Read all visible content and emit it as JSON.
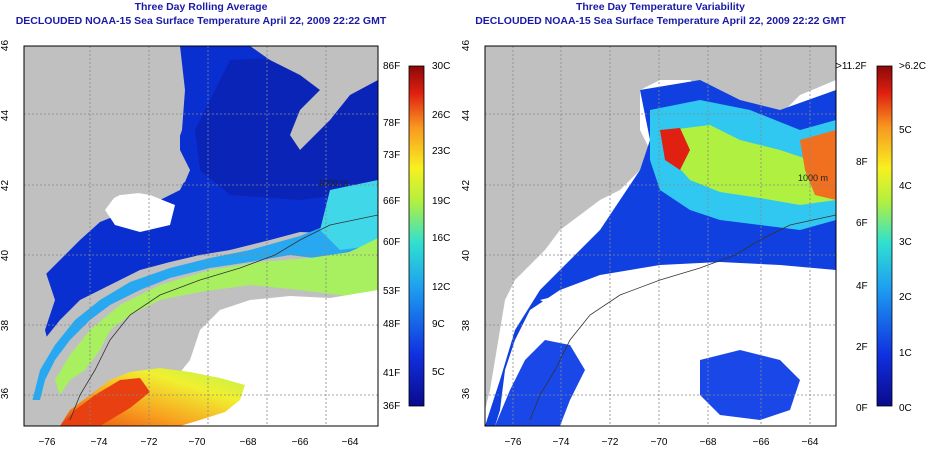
{
  "left_panel": {
    "title_line1": "Three Day Rolling Average",
    "title_line2": "DECLOUDED NOAA-15 Sea Surface Temperature April 22, 2009 22:22 GMT",
    "y_ticks": [
      "46",
      "44",
      "42",
      "40",
      "38",
      "36"
    ],
    "x_ticks": [
      "−76",
      "−74",
      "−72",
      "−70",
      "−68",
      "−66",
      "−64"
    ],
    "contour_label": "1000 m",
    "colorbar_left_labels": [
      "86F",
      "78F",
      "73F",
      "66F",
      "60F",
      "53F",
      "48F",
      "41F",
      "36F"
    ],
    "colorbar_right_labels": [
      "30C",
      "26C",
      "23C",
      "19C",
      "16C",
      "12C",
      "9C",
      "5C"
    ]
  },
  "right_panel": {
    "title_line1": "Three Day Temperature Variability",
    "title_line2": "DECLOUDED NOAA-15 Sea Surface Temperature April 22, 2009 22:22 GMT",
    "y_ticks": [
      "46",
      "44",
      "42",
      "40",
      "38",
      "36"
    ],
    "x_ticks": [
      "−76",
      "−74",
      "−72",
      "−70",
      "−68",
      "−66",
      "−64"
    ],
    "contour_label": "1000 m",
    "colorbar_left_labels": [
      ">11.2F",
      "8F",
      "6F",
      "4F",
      "2F",
      "0F"
    ],
    "colorbar_right_labels": [
      ">6.2C",
      "5C",
      "4C",
      "3C",
      "2C",
      "1C",
      "0C"
    ]
  },
  "colors": {
    "title": "#1a1aa6",
    "land": "#c0c0c0",
    "ocean_deep": "#0a1fc8",
    "no_data": "#ffffff"
  }
}
